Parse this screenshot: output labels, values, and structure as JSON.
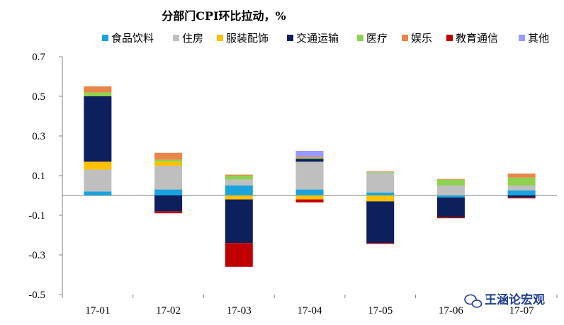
{
  "chart_data": {
    "type": "bar",
    "stacked": true,
    "title": "分部门CPI环比拉动，%",
    "categories": [
      "17-01",
      "17-02",
      "17-03",
      "17-04",
      "17-05",
      "17-06",
      "17-07"
    ],
    "ylim": [
      -0.5,
      0.7
    ],
    "yticks": [
      0.7,
      0.5,
      0.3,
      0.1,
      -0.1,
      -0.3,
      -0.5
    ],
    "ytick_labels": [
      "0.7",
      "0.5",
      "0.3",
      "0.1",
      "-0.1",
      "-0.3",
      "-0.5"
    ],
    "grid": false,
    "legend_position": "top",
    "series": [
      {
        "name": "食品饮料",
        "color": "#1aa3dc",
        "values": [
          0.02,
          0.03,
          0.05,
          0.03,
          0.015,
          -0.01,
          0.025
        ]
      },
      {
        "name": "住房",
        "color": "#bfbfbf",
        "values": [
          0.11,
          0.12,
          0.03,
          0.14,
          0.1,
          0.05,
          0.025
        ]
      },
      {
        "name": "服装配饰",
        "color": "#ffc000",
        "values": [
          0.04,
          0.02,
          -0.02,
          -0.02,
          -0.03,
          0.0,
          0.0
        ]
      },
      {
        "name": "交通运输",
        "color": "#0d1f5c",
        "values": [
          0.33,
          -0.08,
          -0.22,
          0.015,
          -0.21,
          -0.1,
          -0.01
        ]
      },
      {
        "name": "医疗",
        "color": "#8fd14f",
        "values": [
          0.02,
          0.01,
          0.02,
          0.005,
          0.003,
          0.03,
          0.04
        ]
      },
      {
        "name": "娱乐",
        "color": "#e8864a",
        "values": [
          0.03,
          0.035,
          0.005,
          0.005,
          0.003,
          0.003,
          0.02
        ]
      },
      {
        "name": "教育通信",
        "color": "#c00000",
        "values": [
          0.0,
          -0.01,
          -0.12,
          -0.015,
          -0.005,
          -0.005,
          -0.005
        ]
      },
      {
        "name": "其他",
        "color": "#9999ff",
        "values": [
          0.0,
          0.0,
          0.0,
          0.03,
          0.0,
          0.0,
          0.0
        ]
      }
    ]
  },
  "watermark": {
    "text": "王涵论宏观",
    "icon": "wechat-icon"
  }
}
